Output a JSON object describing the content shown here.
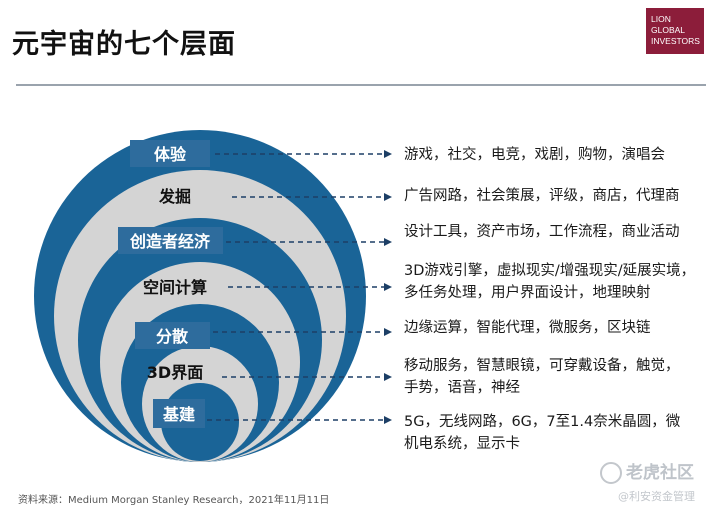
{
  "title": "元宇宙的七个层面",
  "logo": {
    "line1": "LION",
    "line2": "GLOBAL",
    "line3": "INVESTORS"
  },
  "layers": [
    {
      "label": "体验",
      "desc": [
        "游戏，社交，电竞，戏剧，购物，演唱会"
      ]
    },
    {
      "label": "发掘",
      "desc": [
        "广告网路，社会策展，评级，商店，代理商"
      ]
    },
    {
      "label": "创造者经济",
      "desc": [
        "设计工具，资产市场，工作流程，商业活动"
      ]
    },
    {
      "label": "空间计算",
      "desc": [
        "3D游戏引擎，虚拟现实/增强现实/延展实境，",
        "多任务处理，用户界面设计，地理映射"
      ]
    },
    {
      "label": "分散",
      "desc": [
        "边缘运算，智能代理，微服务，区块链"
      ]
    },
    {
      "label": "3D界面",
      "desc": [
        "移动服务，智慧眼镜，可穿戴设备，触觉，",
        "手势，语音，神经"
      ]
    },
    {
      "label": "基建",
      "desc": [
        "5G，无线网路，6G，7至1.4奈米晶圆，微",
        "机电系统，显示卡"
      ]
    }
  ],
  "source": "资料来源：Medium Morgan Stanley Research，2021年11月11日",
  "watermark": {
    "main": "老虎社区",
    "sub": "@利安资金管理"
  },
  "colors": {
    "dark_blue": "#1a6497",
    "ring_gray": "#d4d4d4",
    "label_box": "#2e6c9d",
    "arrow": "#1d3f66"
  }
}
